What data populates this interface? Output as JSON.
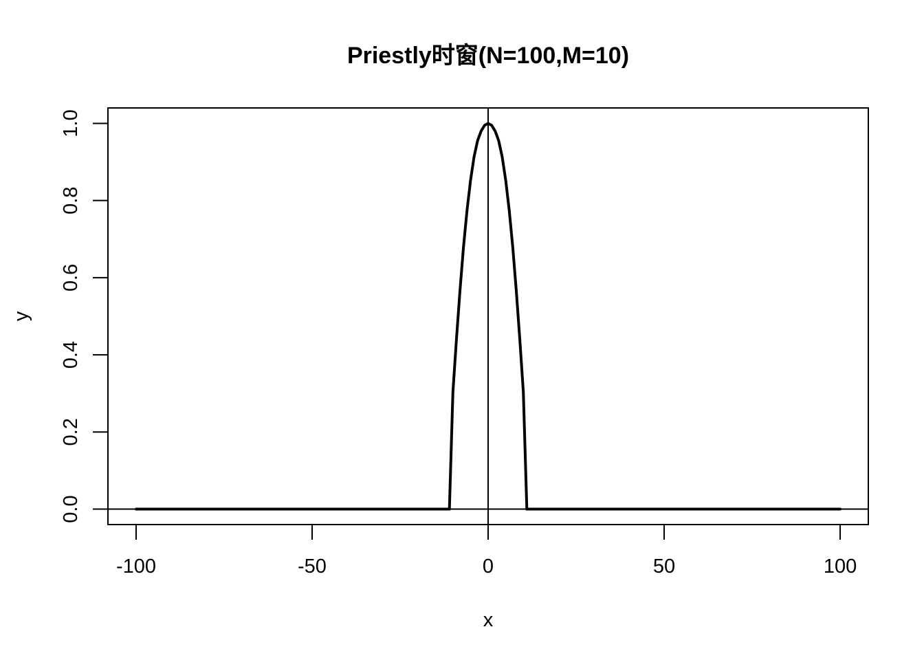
{
  "chart_data": {
    "type": "line",
    "title": "Priestly时窗(N=100,M=10)",
    "xlabel": "x",
    "ylabel": "y",
    "xlim": [
      -108,
      108
    ],
    "ylim": [
      -0.04,
      1.04
    ],
    "x_ticks": [
      -100,
      -50,
      0,
      50,
      100
    ],
    "x_tick_labels": [
      "-100",
      "-50",
      "0",
      "50",
      "100"
    ],
    "y_ticks": [
      0.0,
      0.2,
      0.4,
      0.6,
      0.8,
      1.0
    ],
    "y_tick_labels": [
      "0.0",
      "0.2",
      "0.4",
      "0.6",
      "0.8",
      "1.0"
    ],
    "grid": false,
    "reference_lines": {
      "vertical_x": 0,
      "horizontal_y": 0
    },
    "series": [
      {
        "color": "#000000",
        "x": [
          -100,
          -11,
          -10,
          -9,
          -8,
          -7,
          -6,
          -5,
          -4,
          -3,
          -2,
          -1,
          0,
          1,
          2,
          3,
          4,
          5,
          6,
          7,
          8,
          9,
          10,
          11,
          100
        ],
        "y": [
          0,
          0,
          0.304,
          0.44,
          0.566,
          0.679,
          0.774,
          0.852,
          0.913,
          0.955,
          0.98,
          0.995,
          1.0,
          0.995,
          0.98,
          0.955,
          0.913,
          0.852,
          0.774,
          0.679,
          0.566,
          0.44,
          0.304,
          0,
          0
        ]
      }
    ]
  }
}
